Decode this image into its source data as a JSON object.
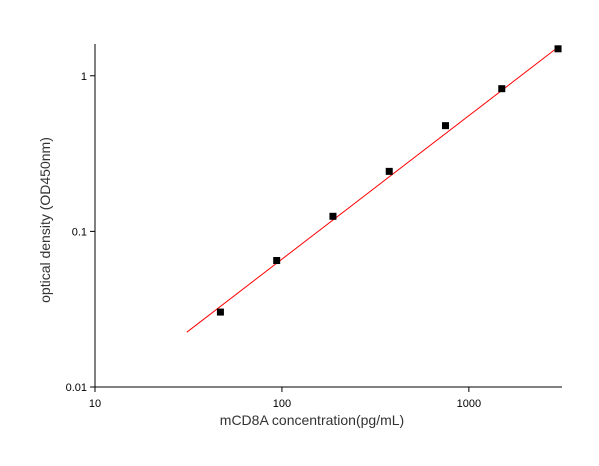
{
  "chart_data": {
    "type": "scatter",
    "xlabel": "mCD8A concentration(pg/mL)",
    "ylabel": "optical density (OD450nm)",
    "x": [
      46.875,
      93.75,
      187.5,
      375,
      750,
      1500,
      3000
    ],
    "series": [
      {
        "values": [
          0.0303,
          0.065,
          0.125,
          0.243,
          0.478,
          0.826,
          1.49
        ],
        "color": "#000000"
      }
    ],
    "fit": {
      "x": [
        31,
        3050
      ],
      "values": [
        0.0225,
        1.55
      ],
      "color": "#ff0000"
    },
    "xscale": "log",
    "yscale": "log",
    "xlim": [
      10,
      3150
    ],
    "ylim": [
      0.01,
      1.6
    ],
    "xticks": [
      10,
      100,
      1000
    ],
    "yticks": [
      0.01,
      0.1,
      1
    ]
  }
}
